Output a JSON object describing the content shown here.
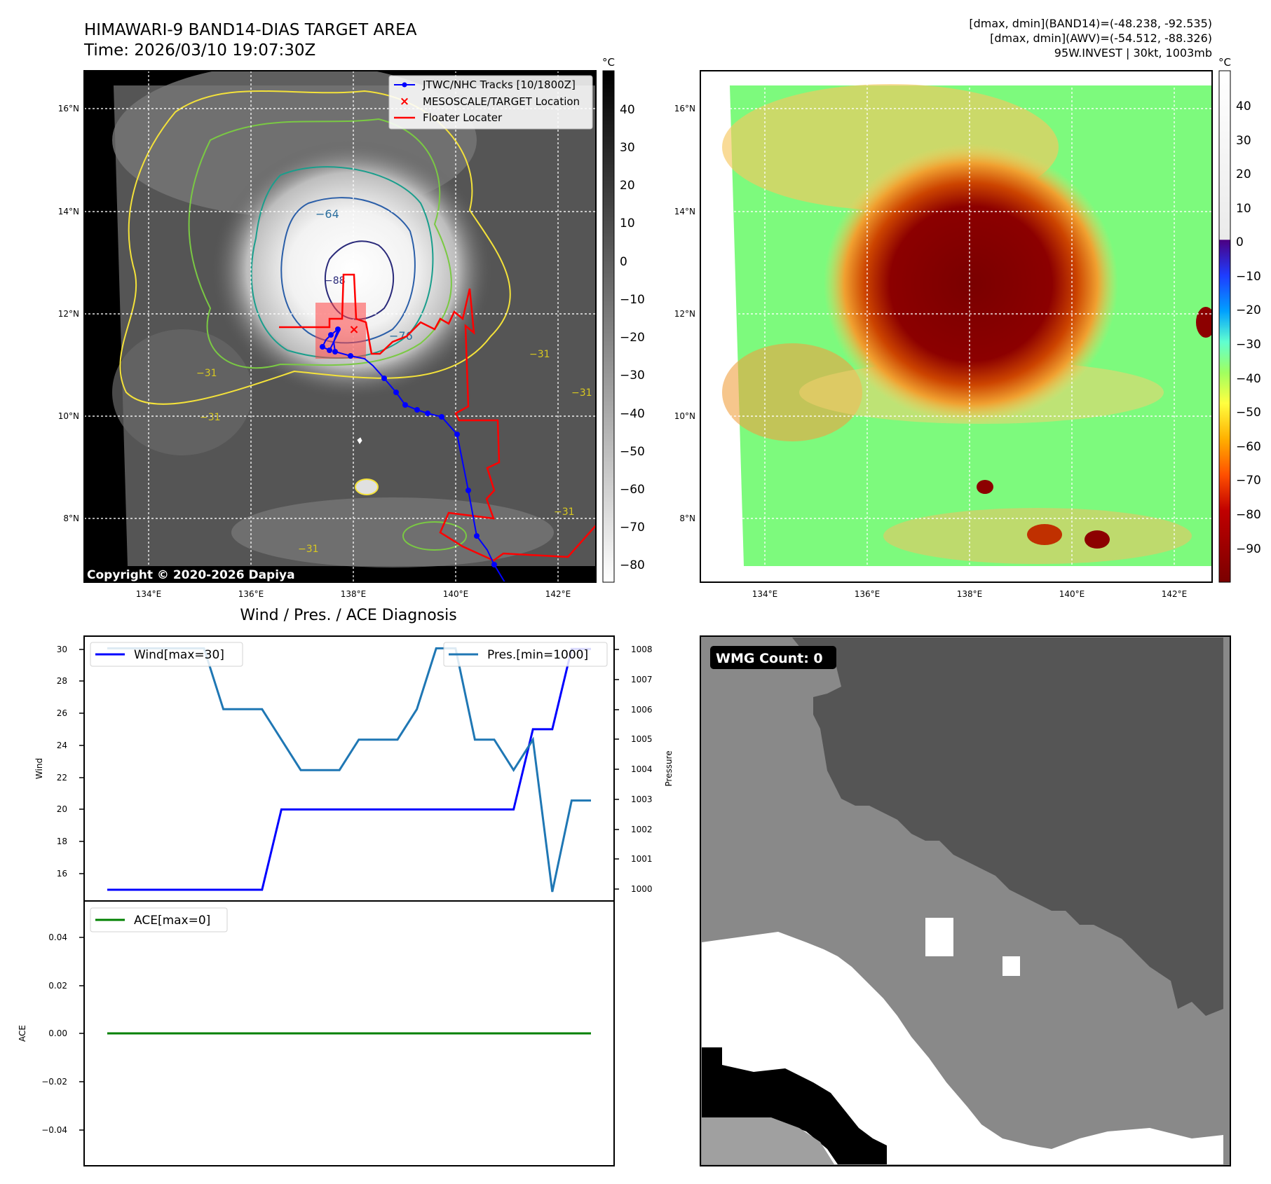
{
  "header": {
    "title_line1": "HIMAWARI-9 BAND14-DIAS TARGET AREA",
    "title_line2": "Time: 2026/03/10 19:07:30Z",
    "stats_line1": "[dmax, dmin](BAND14)=(-48.238, -92.535)",
    "stats_line2": "[dmax, dmin](AWV)=(-54.512, -88.326)",
    "stats_line3": "95W.INVEST | 30kt, 1003mb"
  },
  "map": {
    "lat_labels": [
      "16°N",
      "14°N",
      "12°N",
      "10°N",
      "8°N"
    ],
    "lon_labels": [
      "134°E",
      "136°E",
      "138°E",
      "140°E",
      "142°E"
    ],
    "copyright": "Copyright © 2020-2026 Dapiya",
    "contour_labels": [
      "−64",
      "−76",
      "−88",
      "−31",
      "−31",
      "−31",
      "−31",
      "−31",
      "−31"
    ],
    "legend": {
      "tracks": "JTWC/NHC Tracks [10/1800Z]",
      "target": "MESOSCALE/TARGET Location",
      "floater": "Floater Locater"
    },
    "track_color": "#0000ff",
    "floater_color": "#ff0000"
  },
  "colorbars": {
    "unit": "°C",
    "gray_ticks": [
      "40",
      "30",
      "20",
      "10",
      "0",
      "−10",
      "−20",
      "−30",
      "−40",
      "−50",
      "−60",
      "−70",
      "−80"
    ],
    "color_ticks": [
      "40",
      "30",
      "20",
      "10",
      "0",
      "−10",
      "−20",
      "−30",
      "−40",
      "−50",
      "−60",
      "−70",
      "−80",
      "−90"
    ]
  },
  "diagnosis": {
    "title": "Wind / Pres. / ACE Diagnosis",
    "wind_axis_label": "Wind",
    "pressure_axis_label": "Pressure",
    "ace_axis_label": "ACE",
    "wind_legend": "Wind[max=30]",
    "pressure_legend": "Pres.[min=1000]",
    "ace_legend": "ACE[max=0]",
    "wind_ticks": [
      "30",
      "28",
      "26",
      "24",
      "22",
      "20",
      "18",
      "16"
    ],
    "pressure_ticks": [
      "1008",
      "1007",
      "1006",
      "1005",
      "1004",
      "1003",
      "1002",
      "1001",
      "1000"
    ],
    "ace_ticks": [
      "0.04",
      "0.02",
      "0.00",
      "−0.02",
      "−0.04"
    ]
  },
  "wmg": {
    "badge": "WMG Count: 0"
  },
  "chart_data": [
    {
      "type": "line",
      "title": "Wind / Pres. / ACE Diagnosis",
      "ylabel": "Wind",
      "ylim": [
        14.3,
        30.8
      ],
      "series": [
        {
          "name": "Wind[max=30]",
          "color": "#0000ff",
          "x": [
            0,
            8,
            9,
            21,
            22,
            23,
            24,
            25
          ],
          "values": [
            15,
            15,
            20,
            20,
            25,
            25,
            30,
            30
          ]
        }
      ]
    },
    {
      "type": "line",
      "ylabel": "Pressure",
      "ylim": [
        999.7,
        1008.4
      ],
      "series": [
        {
          "name": "Pres.[min=1000]",
          "color": "#1f77b4",
          "x": [
            0,
            5,
            6,
            8,
            10,
            12,
            13,
            15,
            16,
            17,
            18,
            19,
            20,
            21,
            22,
            23,
            24,
            25
          ],
          "values": [
            1008,
            1008,
            1006,
            1006,
            1004,
            1004,
            1005,
            1005,
            1006,
            1008,
            1008,
            1005,
            1005,
            1004,
            1005,
            1000,
            1003,
            1003
          ]
        }
      ]
    },
    {
      "type": "line",
      "ylabel": "ACE",
      "ylim": [
        -0.055,
        0.055
      ],
      "series": [
        {
          "name": "ACE[max=0]",
          "color": "#008000",
          "x": [
            0,
            25
          ],
          "values": [
            0,
            0
          ]
        }
      ]
    }
  ]
}
